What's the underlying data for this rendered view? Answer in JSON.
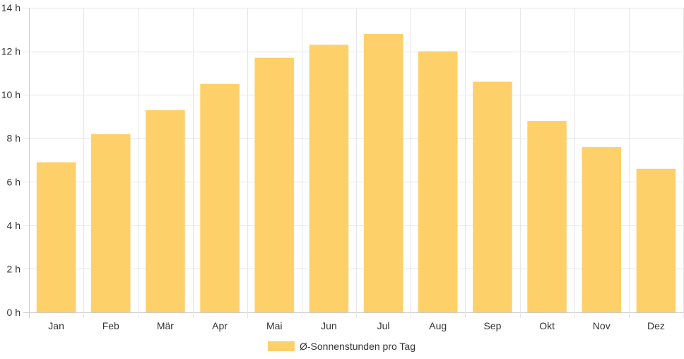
{
  "chart_data": {
    "type": "bar",
    "categories": [
      "Jan",
      "Feb",
      "Mär",
      "Apr",
      "Mai",
      "Jun",
      "Jul",
      "Aug",
      "Sep",
      "Okt",
      "Nov",
      "Dez"
    ],
    "series": [
      {
        "name": "Ø-Sonnenstunden pro Tag",
        "values": [
          6.9,
          8.2,
          9.3,
          10.5,
          11.7,
          12.3,
          12.8,
          12.0,
          10.6,
          8.8,
          7.6,
          6.6
        ]
      }
    ],
    "y_ticks": [
      "0 h",
      "2 h",
      "4 h",
      "6 h",
      "8 h",
      "10 h",
      "12 h",
      "14 h"
    ],
    "y_tick_values": [
      0,
      2,
      4,
      6,
      8,
      10,
      12,
      14
    ],
    "ylim": [
      0,
      14
    ],
    "grid": true,
    "legend_position": "bottom",
    "colors": {
      "bar": "#fed06a",
      "grid": "#e6e6e6",
      "axis": "#cccccc",
      "text": "#333333"
    }
  }
}
